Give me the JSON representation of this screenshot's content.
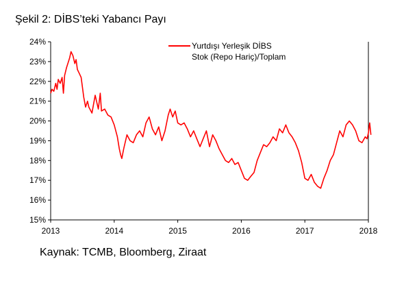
{
  "figure": {
    "title": "Şekil 2: DİBS’teki Yabancı Payı",
    "source": "Kaynak: TCMB, Bloomberg, Ziraat"
  },
  "chart_data": {
    "type": "line",
    "title": "",
    "xlabel": "",
    "ylabel": "",
    "ylim": [
      15,
      24
    ],
    "xlim": [
      2013,
      2018
    ],
    "grid": false,
    "legend_position": "top-right",
    "y_tick_labels": [
      "15%",
      "16%",
      "17%",
      "18%",
      "19%",
      "20%",
      "21%",
      "22%",
      "23%",
      "24%"
    ],
    "x_tick_labels": [
      "2013",
      "2014",
      "2015",
      "2016",
      "2017",
      "2018"
    ],
    "series": [
      {
        "name": "Yurtdışı Yerleşik DİBS Stok (Repo Hariç)/Toplam",
        "legend_lines": [
          "Yurtdışı Yerleşik DİBS",
          "Stok (Repo Hariç)/Toplam"
        ],
        "color": "#ff0000",
        "x": [
          2013.0,
          2013.02,
          2013.05,
          2013.08,
          2013.1,
          2013.12,
          2013.15,
          2013.18,
          2013.2,
          2013.22,
          2013.25,
          2013.28,
          2013.3,
          2013.32,
          2013.35,
          2013.38,
          2013.4,
          2013.42,
          2013.45,
          2013.48,
          2013.5,
          2013.52,
          2013.55,
          2013.58,
          2013.6,
          2013.65,
          2013.7,
          2013.75,
          2013.78,
          2013.8,
          2013.85,
          2013.9,
          2013.95,
          2014.0,
          2014.05,
          2014.08,
          2014.1,
          2014.12,
          2014.15,
          2014.2,
          2014.25,
          2014.3,
          2014.35,
          2014.4,
          2014.45,
          2014.5,
          2014.55,
          2014.6,
          2014.65,
          2014.7,
          2014.75,
          2014.8,
          2014.85,
          2014.88,
          2014.92,
          2014.96,
          2015.0,
          2015.05,
          2015.1,
          2015.15,
          2015.2,
          2015.25,
          2015.3,
          2015.35,
          2015.4,
          2015.45,
          2015.5,
          2015.55,
          2015.6,
          2015.65,
          2015.7,
          2015.75,
          2015.8,
          2015.85,
          2015.9,
          2015.95,
          2016.0,
          2016.05,
          2016.1,
          2016.15,
          2016.2,
          2016.25,
          2016.3,
          2016.35,
          2016.4,
          2016.45,
          2016.5,
          2016.55,
          2016.6,
          2016.65,
          2016.7,
          2016.75,
          2016.8,
          2016.85,
          2016.9,
          2016.95,
          2017.0,
          2017.05,
          2017.1,
          2017.15,
          2017.2,
          2017.25,
          2017.3,
          2017.35,
          2017.4,
          2017.45,
          2017.5,
          2017.55,
          2017.6,
          2017.65,
          2017.7,
          2017.75,
          2017.8,
          2017.85,
          2017.9,
          2017.95,
          2017.98,
          2018.0,
          2018.02,
          2018.04
        ],
        "values": [
          21.4,
          21.6,
          21.5,
          21.9,
          21.6,
          22.1,
          21.9,
          22.2,
          21.4,
          22.3,
          22.7,
          23.0,
          23.2,
          23.5,
          23.3,
          22.9,
          23.1,
          22.6,
          22.4,
          22.2,
          21.7,
          21.2,
          20.7,
          21.0,
          20.7,
          20.4,
          21.3,
          20.6,
          21.4,
          20.5,
          20.6,
          20.3,
          20.2,
          19.8,
          19.2,
          18.6,
          18.3,
          18.1,
          18.6,
          19.3,
          19.0,
          18.9,
          19.3,
          19.5,
          19.2,
          19.9,
          20.2,
          19.6,
          19.3,
          19.7,
          19.0,
          19.5,
          20.3,
          20.6,
          20.2,
          20.5,
          19.9,
          19.8,
          19.9,
          19.6,
          19.2,
          19.5,
          19.1,
          18.7,
          19.1,
          19.5,
          18.7,
          19.3,
          19.0,
          18.6,
          18.3,
          18.0,
          17.9,
          18.1,
          17.8,
          17.9,
          17.5,
          17.1,
          17.0,
          17.2,
          17.4,
          18.0,
          18.4,
          18.8,
          18.7,
          18.9,
          19.2,
          19.0,
          19.6,
          19.4,
          19.8,
          19.4,
          19.2,
          18.9,
          18.5,
          17.9,
          17.1,
          17.0,
          17.3,
          16.9,
          16.7,
          16.6,
          17.1,
          17.5,
          18.0,
          18.3,
          18.9,
          19.5,
          19.2,
          19.8,
          20.0,
          19.8,
          19.5,
          19.0,
          18.9,
          19.2,
          19.1,
          19.4,
          19.9,
          19.3
        ]
      }
    ]
  }
}
